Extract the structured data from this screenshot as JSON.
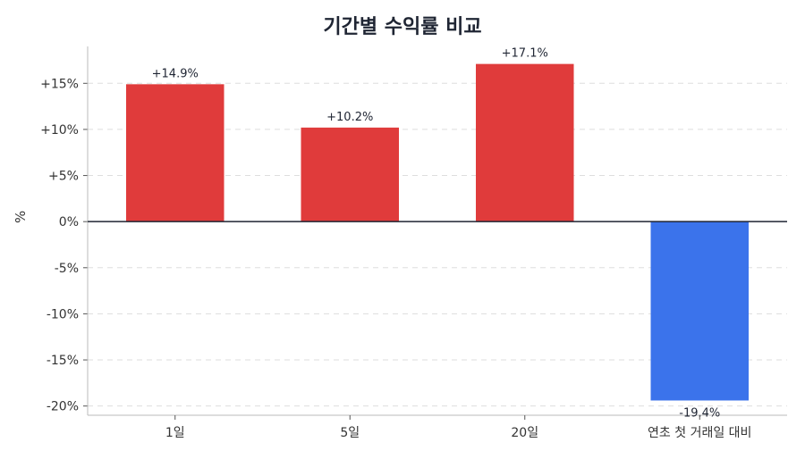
{
  "chart_data": {
    "type": "bar",
    "title": "기간별 수익률 비교",
    "xlabel": "",
    "ylabel": "%",
    "categories": [
      "1일",
      "5일",
      "20일",
      "연초 첫 거래일 대비"
    ],
    "values": [
      14.9,
      10.2,
      17.1,
      -19.4
    ],
    "data_labels": [
      "+14.9%",
      "+10.2%",
      "+17.1%",
      "-19.4%"
    ],
    "ylim": [
      -21,
      19
    ],
    "yticks": [
      15,
      10,
      5,
      0,
      -5,
      -10,
      -15,
      -20
    ],
    "ytick_labels": [
      "+15%",
      "+10%",
      "+5%",
      "0%",
      "-5%",
      "-10%",
      "-15%",
      "-20%"
    ],
    "grid": true,
    "colors": {
      "positive": "#e03b3b",
      "negative": "#3b73eb",
      "zero_line": "#1f2533",
      "grid": "#dddddd",
      "axis": "#bbbbbb"
    }
  }
}
